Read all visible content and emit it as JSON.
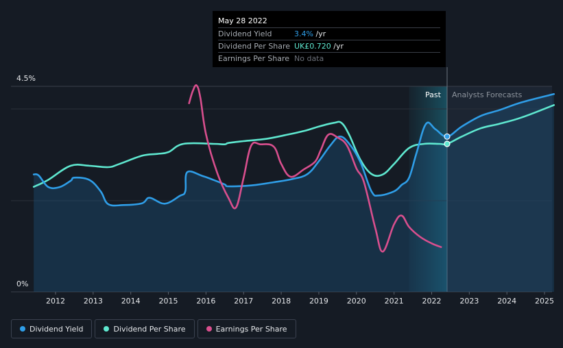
{
  "tooltip": {
    "date": "May 28 2022",
    "rows": [
      {
        "label": "Dividend Yield",
        "value": "3.4%",
        "unit": " /yr",
        "color": "#2f9ee8"
      },
      {
        "label": "Dividend Per Share",
        "value": "UK£0.720",
        "unit": " /yr",
        "color": "#5fe8d0"
      },
      {
        "label": "Earnings Per Share",
        "value": "No data",
        "unit": "",
        "color": "#6b7079"
      }
    ]
  },
  "legend": [
    {
      "label": "Dividend Yield",
      "color": "#2f9ee8"
    },
    {
      "label": "Dividend Per Share",
      "color": "#5fe8d0"
    },
    {
      "label": "Earnings Per Share",
      "color": "#d94f8e"
    }
  ],
  "chart_data": {
    "type": "line",
    "y_tick_labels": [
      "4.5%",
      "0%"
    ],
    "ylim": [
      0,
      4.5
    ],
    "x_tick_labels": [
      "2012",
      "2013",
      "2014",
      "2015",
      "2016",
      "2017",
      "2018",
      "2019",
      "2020",
      "2021",
      "2022",
      "2023",
      "2024",
      "2025"
    ],
    "xlim": [
      2011.25,
      2025.25
    ],
    "regions": {
      "past_label": "Past",
      "forecast_label": "Analysts Forecasts",
      "past_start": 2021.4,
      "forecast_start": 2022.41
    },
    "series": [
      {
        "name": "Dividend Per Share",
        "color": "#5fe8d0",
        "points": [
          [
            2011.42,
            2.3
          ],
          [
            2011.8,
            2.45
          ],
          [
            2012.4,
            2.76
          ],
          [
            2012.9,
            2.76
          ],
          [
            2013.4,
            2.73
          ],
          [
            2013.7,
            2.8
          ],
          [
            2014.3,
            2.98
          ],
          [
            2014.7,
            3.02
          ],
          [
            2015.0,
            3.06
          ],
          [
            2015.4,
            3.24
          ],
          [
            2016.2,
            3.24
          ],
          [
            2016.5,
            3.23
          ],
          [
            2016.6,
            3.26
          ],
          [
            2017.0,
            3.3
          ],
          [
            2017.6,
            3.35
          ],
          [
            2018.1,
            3.43
          ],
          [
            2018.6,
            3.52
          ],
          [
            2019.0,
            3.62
          ],
          [
            2019.4,
            3.7
          ],
          [
            2019.6,
            3.7
          ],
          [
            2019.8,
            3.45
          ],
          [
            2020.1,
            2.9
          ],
          [
            2020.4,
            2.58
          ],
          [
            2020.7,
            2.57
          ],
          [
            2021.0,
            2.8
          ],
          [
            2021.4,
            3.15
          ],
          [
            2021.8,
            3.24
          ],
          [
            2022.2,
            3.24
          ],
          [
            2022.41,
            3.24
          ],
          [
            2022.8,
            3.4
          ],
          [
            2023.3,
            3.58
          ],
          [
            2023.8,
            3.68
          ],
          [
            2024.4,
            3.82
          ],
          [
            2025.25,
            4.09
          ]
        ]
      },
      {
        "name": "Dividend Yield",
        "color": "#2f9ee8",
        "points": [
          [
            2011.42,
            2.57
          ],
          [
            2011.55,
            2.55
          ],
          [
            2011.8,
            2.3
          ],
          [
            2012.1,
            2.29
          ],
          [
            2012.4,
            2.43
          ],
          [
            2012.5,
            2.5
          ],
          [
            2012.9,
            2.45
          ],
          [
            2013.2,
            2.2
          ],
          [
            2013.4,
            1.92
          ],
          [
            2013.8,
            1.9
          ],
          [
            2014.3,
            1.94
          ],
          [
            2014.5,
            2.06
          ],
          [
            2014.9,
            1.93
          ],
          [
            2015.3,
            2.1
          ],
          [
            2015.45,
            2.2
          ],
          [
            2015.5,
            2.62
          ],
          [
            2015.9,
            2.54
          ],
          [
            2016.2,
            2.45
          ],
          [
            2016.5,
            2.35
          ],
          [
            2016.6,
            2.31
          ],
          [
            2017.2,
            2.33
          ],
          [
            2017.8,
            2.4
          ],
          [
            2018.3,
            2.47
          ],
          [
            2018.7,
            2.58
          ],
          [
            2019.0,
            2.86
          ],
          [
            2019.3,
            3.2
          ],
          [
            2019.55,
            3.4
          ],
          [
            2019.8,
            3.25
          ],
          [
            2020.1,
            2.85
          ],
          [
            2020.4,
            2.2
          ],
          [
            2020.6,
            2.11
          ],
          [
            2021.0,
            2.2
          ],
          [
            2021.2,
            2.34
          ],
          [
            2021.4,
            2.5
          ],
          [
            2021.6,
            3.05
          ],
          [
            2021.85,
            3.68
          ],
          [
            2022.1,
            3.56
          ],
          [
            2022.41,
            3.4
          ],
          [
            2022.8,
            3.62
          ],
          [
            2023.3,
            3.85
          ],
          [
            2023.8,
            3.98
          ],
          [
            2024.4,
            4.15
          ],
          [
            2025.25,
            4.33
          ]
        ]
      },
      {
        "name": "Earnings Per Share",
        "color": "#d94f8e",
        "points": [
          [
            2015.55,
            4.13
          ],
          [
            2015.65,
            4.4
          ],
          [
            2015.75,
            4.52
          ],
          [
            2015.85,
            4.25
          ],
          [
            2016.0,
            3.45
          ],
          [
            2016.3,
            2.6
          ],
          [
            2016.6,
            2.05
          ],
          [
            2016.8,
            1.85
          ],
          [
            2017.0,
            2.5
          ],
          [
            2017.2,
            3.2
          ],
          [
            2017.45,
            3.23
          ],
          [
            2017.8,
            3.18
          ],
          [
            2018.0,
            2.8
          ],
          [
            2018.25,
            2.52
          ],
          [
            2018.6,
            2.68
          ],
          [
            2018.9,
            2.85
          ],
          [
            2019.05,
            3.1
          ],
          [
            2019.25,
            3.44
          ],
          [
            2019.5,
            3.38
          ],
          [
            2019.75,
            3.2
          ],
          [
            2020.0,
            2.7
          ],
          [
            2020.2,
            2.4
          ],
          [
            2020.5,
            1.4
          ],
          [
            2020.7,
            0.88
          ],
          [
            2021.0,
            1.48
          ],
          [
            2021.2,
            1.67
          ],
          [
            2021.4,
            1.42
          ],
          [
            2021.7,
            1.2
          ],
          [
            2022.0,
            1.06
          ],
          [
            2022.25,
            0.98
          ]
        ]
      }
    ]
  }
}
